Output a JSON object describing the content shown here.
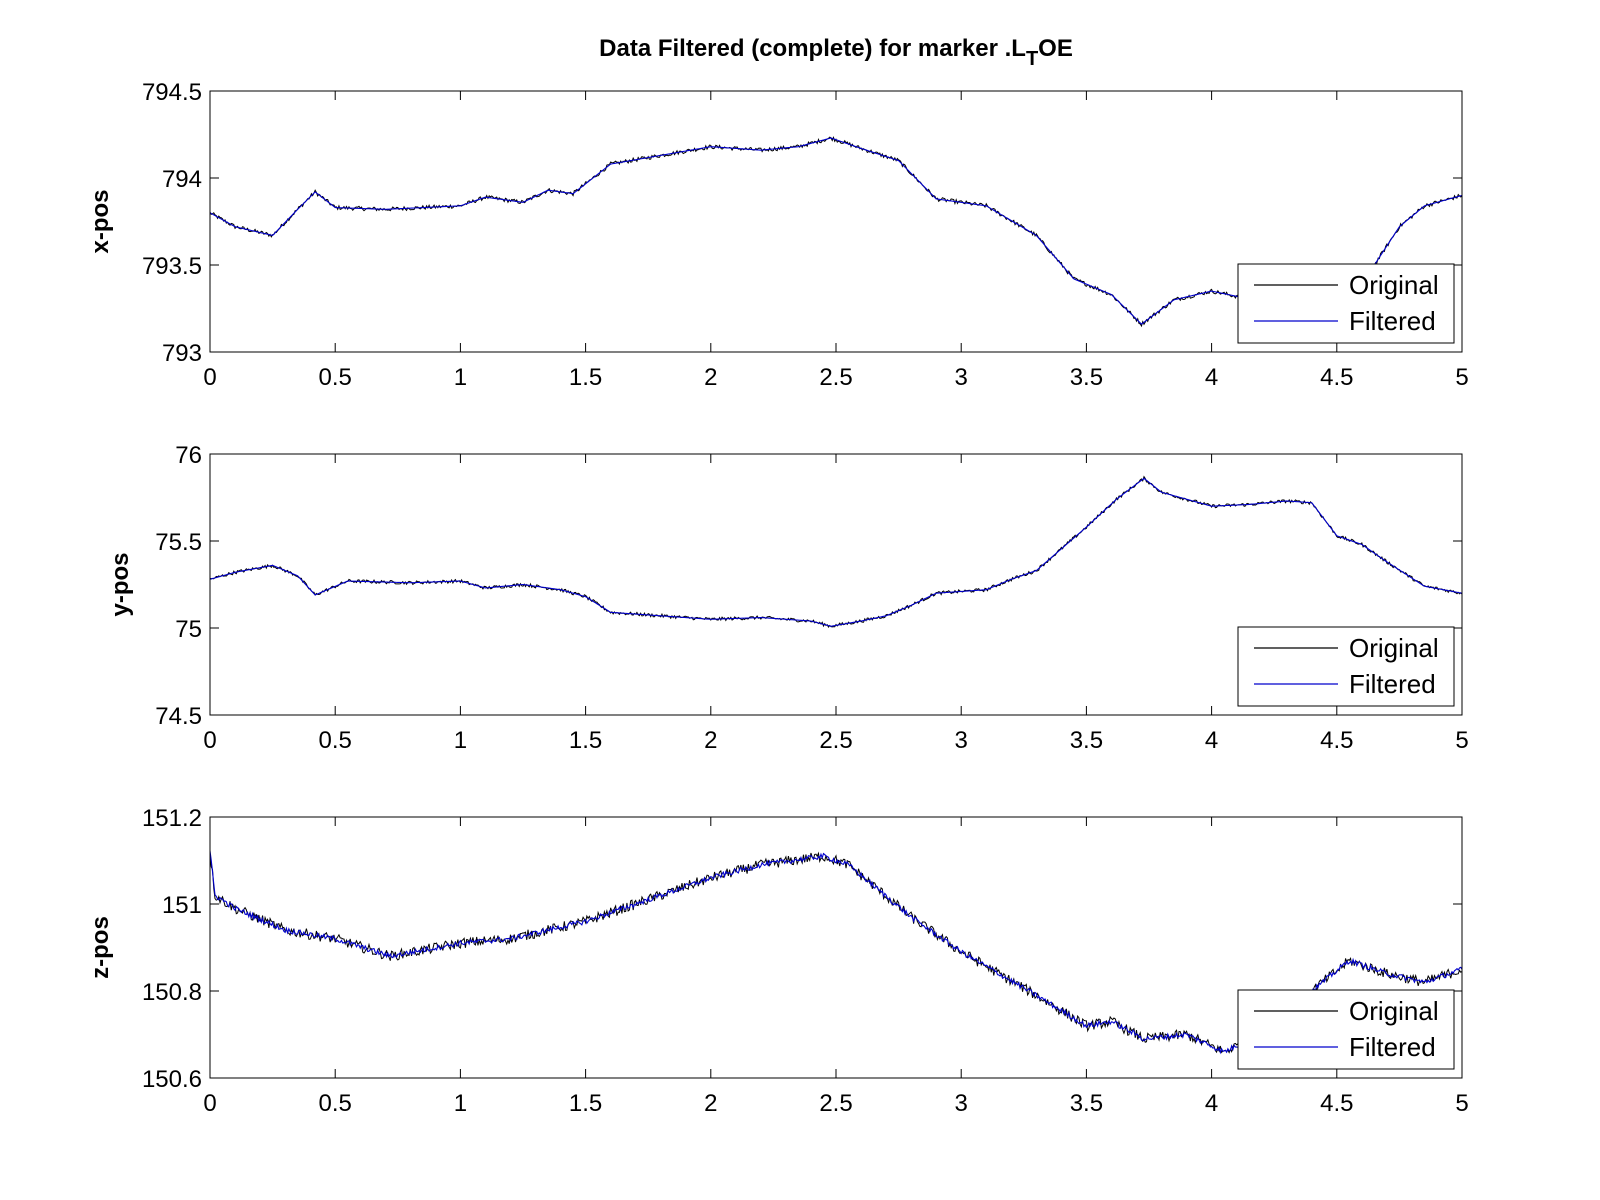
{
  "figure": {
    "title": "Data Filtered (complete) for marker .L",
    "title_sub": "T",
    "title_tail": "OE"
  },
  "chart_data": [
    {
      "type": "line",
      "title": "",
      "xlabel": "",
      "ylabel": "x-pos",
      "xlim": [
        0,
        5
      ],
      "ylim": [
        793,
        794.5
      ],
      "x_ticks": [
        0,
        0.5,
        1,
        1.5,
        2,
        2.5,
        3,
        3.5,
        4,
        4.5,
        5
      ],
      "x_tick_labels": [
        "0",
        "0.5",
        "1",
        "1.5",
        "2",
        "2.5",
        "3",
        "3.5",
        "4",
        "4.5",
        "5"
      ],
      "y_ticks": [
        793,
        793.5,
        794,
        794.5
      ],
      "y_tick_labels": [
        "793",
        "793.5",
        "794",
        "794.5"
      ],
      "grid": false,
      "legend": {
        "placement": "bottom-right",
        "entries": [
          "Original",
          "Filtered"
        ]
      },
      "series": [
        {
          "name": "Original",
          "color": "#000000",
          "noise": 0.012,
          "x": [
            0,
            0.1,
            0.25,
            0.35,
            0.42,
            0.5,
            0.7,
            1.0,
            1.1,
            1.25,
            1.35,
            1.45,
            1.6,
            1.8,
            2.0,
            2.2,
            2.35,
            2.48,
            2.6,
            2.75,
            2.9,
            3.1,
            3.3,
            3.45,
            3.6,
            3.72,
            3.85,
            4.0,
            4.1,
            4.2,
            4.35,
            4.5,
            4.65,
            4.75,
            4.85,
            5.0
          ],
          "y": [
            793.8,
            793.72,
            793.67,
            793.82,
            793.92,
            793.83,
            793.82,
            793.84,
            793.89,
            793.86,
            793.93,
            793.91,
            794.08,
            794.13,
            794.18,
            794.16,
            794.18,
            794.23,
            794.17,
            794.1,
            793.88,
            793.84,
            793.67,
            793.42,
            793.33,
            793.16,
            793.3,
            793.35,
            793.32,
            793.28,
            793.18,
            793.2,
            793.5,
            793.72,
            793.84,
            793.9
          ]
        },
        {
          "name": "Filtered",
          "color": "#0000cc",
          "noise": 0,
          "x": [
            0,
            0.1,
            0.25,
            0.35,
            0.42,
            0.5,
            0.7,
            1.0,
            1.1,
            1.25,
            1.35,
            1.45,
            1.6,
            1.8,
            2.0,
            2.2,
            2.35,
            2.48,
            2.6,
            2.75,
            2.9,
            3.1,
            3.3,
            3.45,
            3.6,
            3.72,
            3.85,
            4.0,
            4.1,
            4.2,
            4.35,
            4.5,
            4.65,
            4.75,
            4.85,
            5.0
          ],
          "y": [
            793.8,
            793.72,
            793.67,
            793.82,
            793.92,
            793.83,
            793.82,
            793.84,
            793.89,
            793.86,
            793.93,
            793.91,
            794.08,
            794.13,
            794.18,
            794.16,
            794.18,
            794.23,
            794.17,
            794.1,
            793.88,
            793.84,
            793.67,
            793.42,
            793.33,
            793.16,
            793.3,
            793.35,
            793.32,
            793.28,
            793.18,
            793.2,
            793.5,
            793.72,
            793.84,
            793.9
          ]
        }
      ]
    },
    {
      "type": "line",
      "title": "",
      "xlabel": "",
      "ylabel": "y-pos",
      "xlim": [
        0,
        5
      ],
      "ylim": [
        74.5,
        76
      ],
      "x_ticks": [
        0,
        0.5,
        1,
        1.5,
        2,
        2.5,
        3,
        3.5,
        4,
        4.5,
        5
      ],
      "x_tick_labels": [
        "0",
        "0.5",
        "1",
        "1.5",
        "2",
        "2.5",
        "3",
        "3.5",
        "4",
        "4.5",
        "5"
      ],
      "y_ticks": [
        74.5,
        75,
        75.5,
        76
      ],
      "y_tick_labels": [
        "74.5",
        "75",
        "75.5",
        "76"
      ],
      "grid": false,
      "legend": {
        "placement": "bottom-right",
        "entries": [
          "Original",
          "Filtered"
        ]
      },
      "series": [
        {
          "name": "Original",
          "color": "#000000",
          "noise": 0.01,
          "x": [
            0,
            0.1,
            0.25,
            0.35,
            0.42,
            0.55,
            0.8,
            1.0,
            1.1,
            1.25,
            1.4,
            1.5,
            1.6,
            1.8,
            2.0,
            2.2,
            2.4,
            2.48,
            2.6,
            2.7,
            2.8,
            2.9,
            3.1,
            3.2,
            3.3,
            3.5,
            3.62,
            3.73,
            3.8,
            4.0,
            4.15,
            4.3,
            4.4,
            4.5,
            4.6,
            4.7,
            4.85,
            5.0
          ],
          "y": [
            75.28,
            75.32,
            75.36,
            75.3,
            75.19,
            75.27,
            75.26,
            75.27,
            75.23,
            75.25,
            75.22,
            75.18,
            75.09,
            75.07,
            75.05,
            75.06,
            75.04,
            75.01,
            75.04,
            75.07,
            75.13,
            75.2,
            75.22,
            75.28,
            75.33,
            75.58,
            75.74,
            75.86,
            75.78,
            75.7,
            75.71,
            75.73,
            75.72,
            75.53,
            75.48,
            75.38,
            75.24,
            75.2
          ]
        },
        {
          "name": "Filtered",
          "color": "#0000cc",
          "noise": 0,
          "x": [
            0,
            0.1,
            0.25,
            0.35,
            0.42,
            0.55,
            0.8,
            1.0,
            1.1,
            1.25,
            1.4,
            1.5,
            1.6,
            1.8,
            2.0,
            2.2,
            2.4,
            2.48,
            2.6,
            2.7,
            2.8,
            2.9,
            3.1,
            3.2,
            3.3,
            3.5,
            3.62,
            3.73,
            3.8,
            4.0,
            4.15,
            4.3,
            4.4,
            4.5,
            4.6,
            4.7,
            4.85,
            5.0
          ],
          "y": [
            75.28,
            75.32,
            75.36,
            75.3,
            75.19,
            75.27,
            75.26,
            75.27,
            75.23,
            75.25,
            75.22,
            75.18,
            75.09,
            75.07,
            75.05,
            75.06,
            75.04,
            75.01,
            75.04,
            75.07,
            75.13,
            75.2,
            75.22,
            75.28,
            75.33,
            75.58,
            75.74,
            75.86,
            75.78,
            75.7,
            75.71,
            75.73,
            75.72,
            75.53,
            75.48,
            75.38,
            75.24,
            75.2
          ]
        }
      ]
    },
    {
      "type": "line",
      "title": "",
      "xlabel": "",
      "ylabel": "z-pos",
      "xlim": [
        0,
        5
      ],
      "ylim": [
        150.6,
        151.2
      ],
      "x_ticks": [
        0,
        0.5,
        1,
        1.5,
        2,
        2.5,
        3,
        3.5,
        4,
        4.5,
        5
      ],
      "x_tick_labels": [
        "0",
        "0.5",
        "1",
        "1.5",
        "2",
        "2.5",
        "3",
        "3.5",
        "4",
        "4.5",
        "5"
      ],
      "y_ticks": [
        150.6,
        150.8,
        151,
        151.2
      ],
      "y_tick_labels": [
        "150.6",
        "150.8",
        "151",
        "151.2"
      ],
      "grid": false,
      "legend": {
        "placement": "bottom-right",
        "entries": [
          "Original",
          "Filtered"
        ]
      },
      "series": [
        {
          "name": "Original",
          "color": "#000000",
          "noise": 0.012,
          "x": [
            0,
            0.02,
            0.1,
            0.3,
            0.5,
            0.72,
            1.0,
            1.2,
            1.5,
            1.7,
            2.0,
            2.2,
            2.45,
            2.55,
            2.8,
            3.0,
            3.3,
            3.5,
            3.6,
            3.73,
            3.9,
            4.05,
            4.3,
            4.4,
            4.55,
            4.7,
            4.85,
            5.0
          ],
          "y": [
            151.12,
            151.02,
            150.99,
            150.94,
            150.92,
            150.88,
            150.91,
            150.92,
            150.96,
            151.0,
            151.06,
            151.09,
            151.11,
            151.09,
            150.97,
            150.89,
            150.79,
            150.72,
            150.73,
            150.69,
            150.7,
            150.66,
            150.73,
            150.8,
            150.87,
            150.84,
            150.82,
            150.85
          ]
        },
        {
          "name": "Filtered",
          "color": "#0000cc",
          "noise": 0.006,
          "x": [
            0,
            0.02,
            0.1,
            0.3,
            0.5,
            0.72,
            1.0,
            1.2,
            1.5,
            1.7,
            2.0,
            2.2,
            2.45,
            2.55,
            2.8,
            3.0,
            3.3,
            3.5,
            3.6,
            3.73,
            3.9,
            4.05,
            4.3,
            4.4,
            4.55,
            4.7,
            4.85,
            5.0
          ],
          "y": [
            151.12,
            151.02,
            150.99,
            150.94,
            150.92,
            150.88,
            150.91,
            150.92,
            150.96,
            151.0,
            151.06,
            151.09,
            151.11,
            151.09,
            150.97,
            150.89,
            150.79,
            150.72,
            150.73,
            150.69,
            150.7,
            150.66,
            150.73,
            150.8,
            150.87,
            150.84,
            150.82,
            150.85
          ]
        }
      ]
    }
  ]
}
